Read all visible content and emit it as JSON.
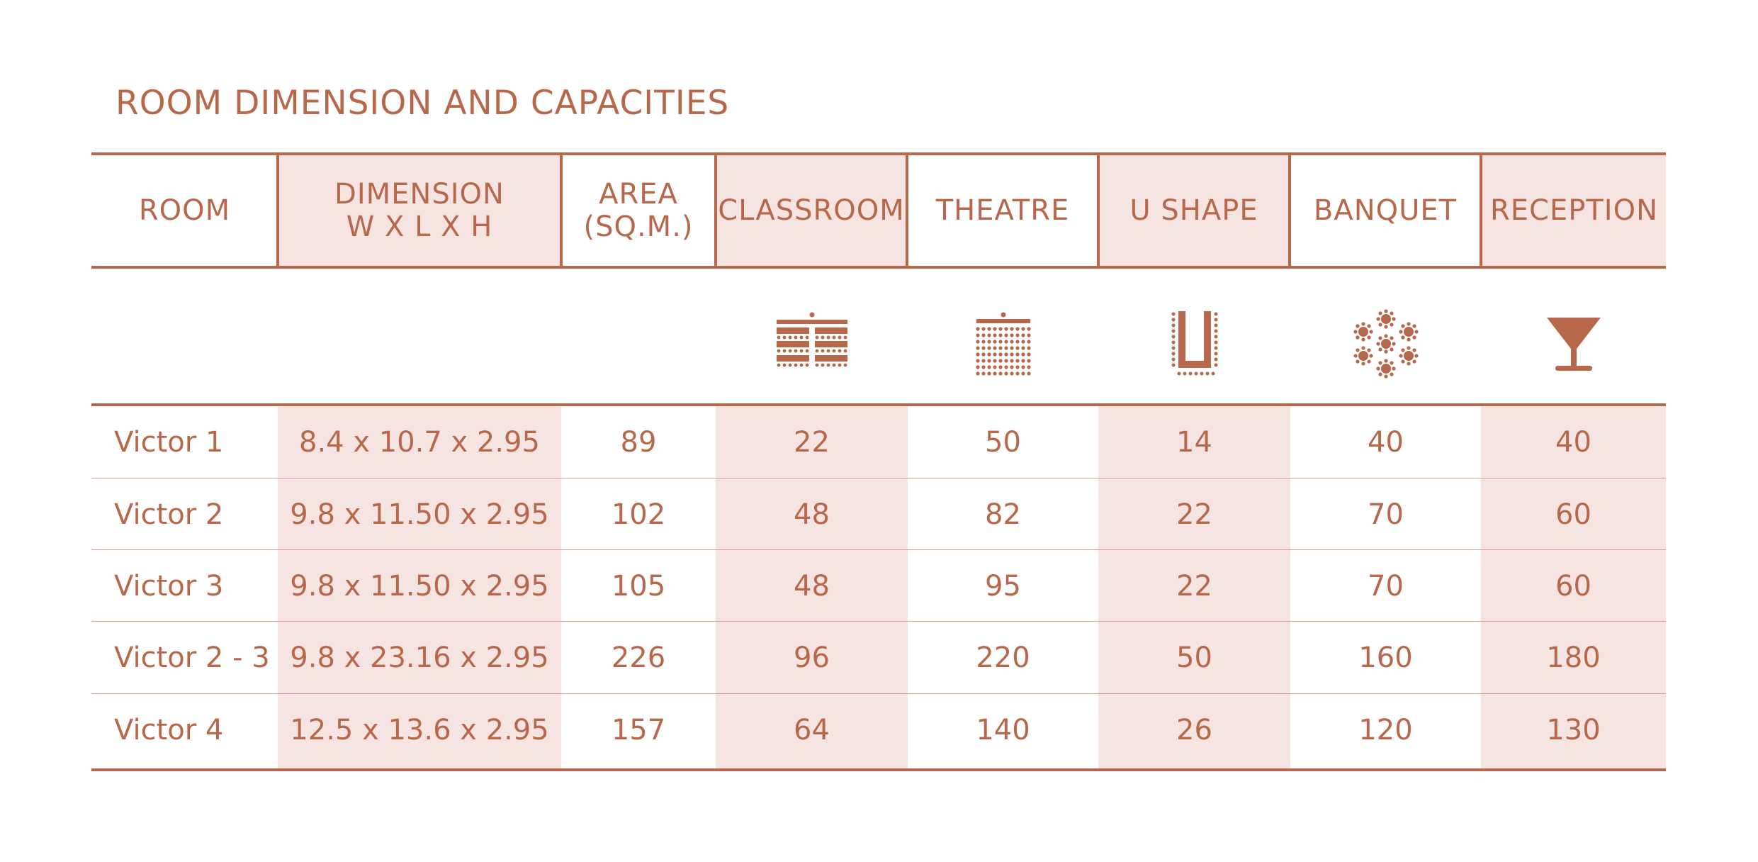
{
  "title": "ROOM DIMENSION AND CAPACITIES",
  "columns": [
    {
      "label": "ROOM"
    },
    {
      "label": "DIMENSION\nW X L X H"
    },
    {
      "label": "AREA\n(SQ.M.)"
    },
    {
      "label": "CLASSROOM",
      "icon": "classroom-layout-icon"
    },
    {
      "label": "THEATRE",
      "icon": "theatre-layout-icon"
    },
    {
      "label": "U SHAPE",
      "icon": "u-shape-layout-icon"
    },
    {
      "label": "BANQUET",
      "icon": "banquet-layout-icon"
    },
    {
      "label": "RECEPTION",
      "icon": "cocktail-glass-icon"
    }
  ],
  "rows": [
    {
      "room": "Victor 1",
      "dimension": "8.4 x 10.7 x 2.95",
      "area": "89",
      "classroom": "22",
      "theatre": "50",
      "ushape": "14",
      "banquet": "40",
      "reception": "40"
    },
    {
      "room": "Victor 2",
      "dimension": "9.8 x 11.50 x 2.95",
      "area": "102",
      "classroom": "48",
      "theatre": "82",
      "ushape": "22",
      "banquet": "70",
      "reception": "60"
    },
    {
      "room": "Victor 3",
      "dimension": "9.8 x 11.50 x 2.95",
      "area": "105",
      "classroom": "48",
      "theatre": "95",
      "ushape": "22",
      "banquet": "70",
      "reception": "60"
    },
    {
      "room": "Victor 2 - 3",
      "dimension": "9.8 x 23.16 x 2.95",
      "area": "226",
      "classroom": "96",
      "theatre": "220",
      "ushape": "50",
      "banquet": "160",
      "reception": "180"
    },
    {
      "room": "Victor 4",
      "dimension": "12.5 x 13.6 x 2.95",
      "area": "157",
      "classroom": "64",
      "theatre": "140",
      "ushape": "26",
      "banquet": "120",
      "reception": "130"
    }
  ],
  "colors": {
    "accent": "#b8684a",
    "shade": "#f5e4e1"
  }
}
